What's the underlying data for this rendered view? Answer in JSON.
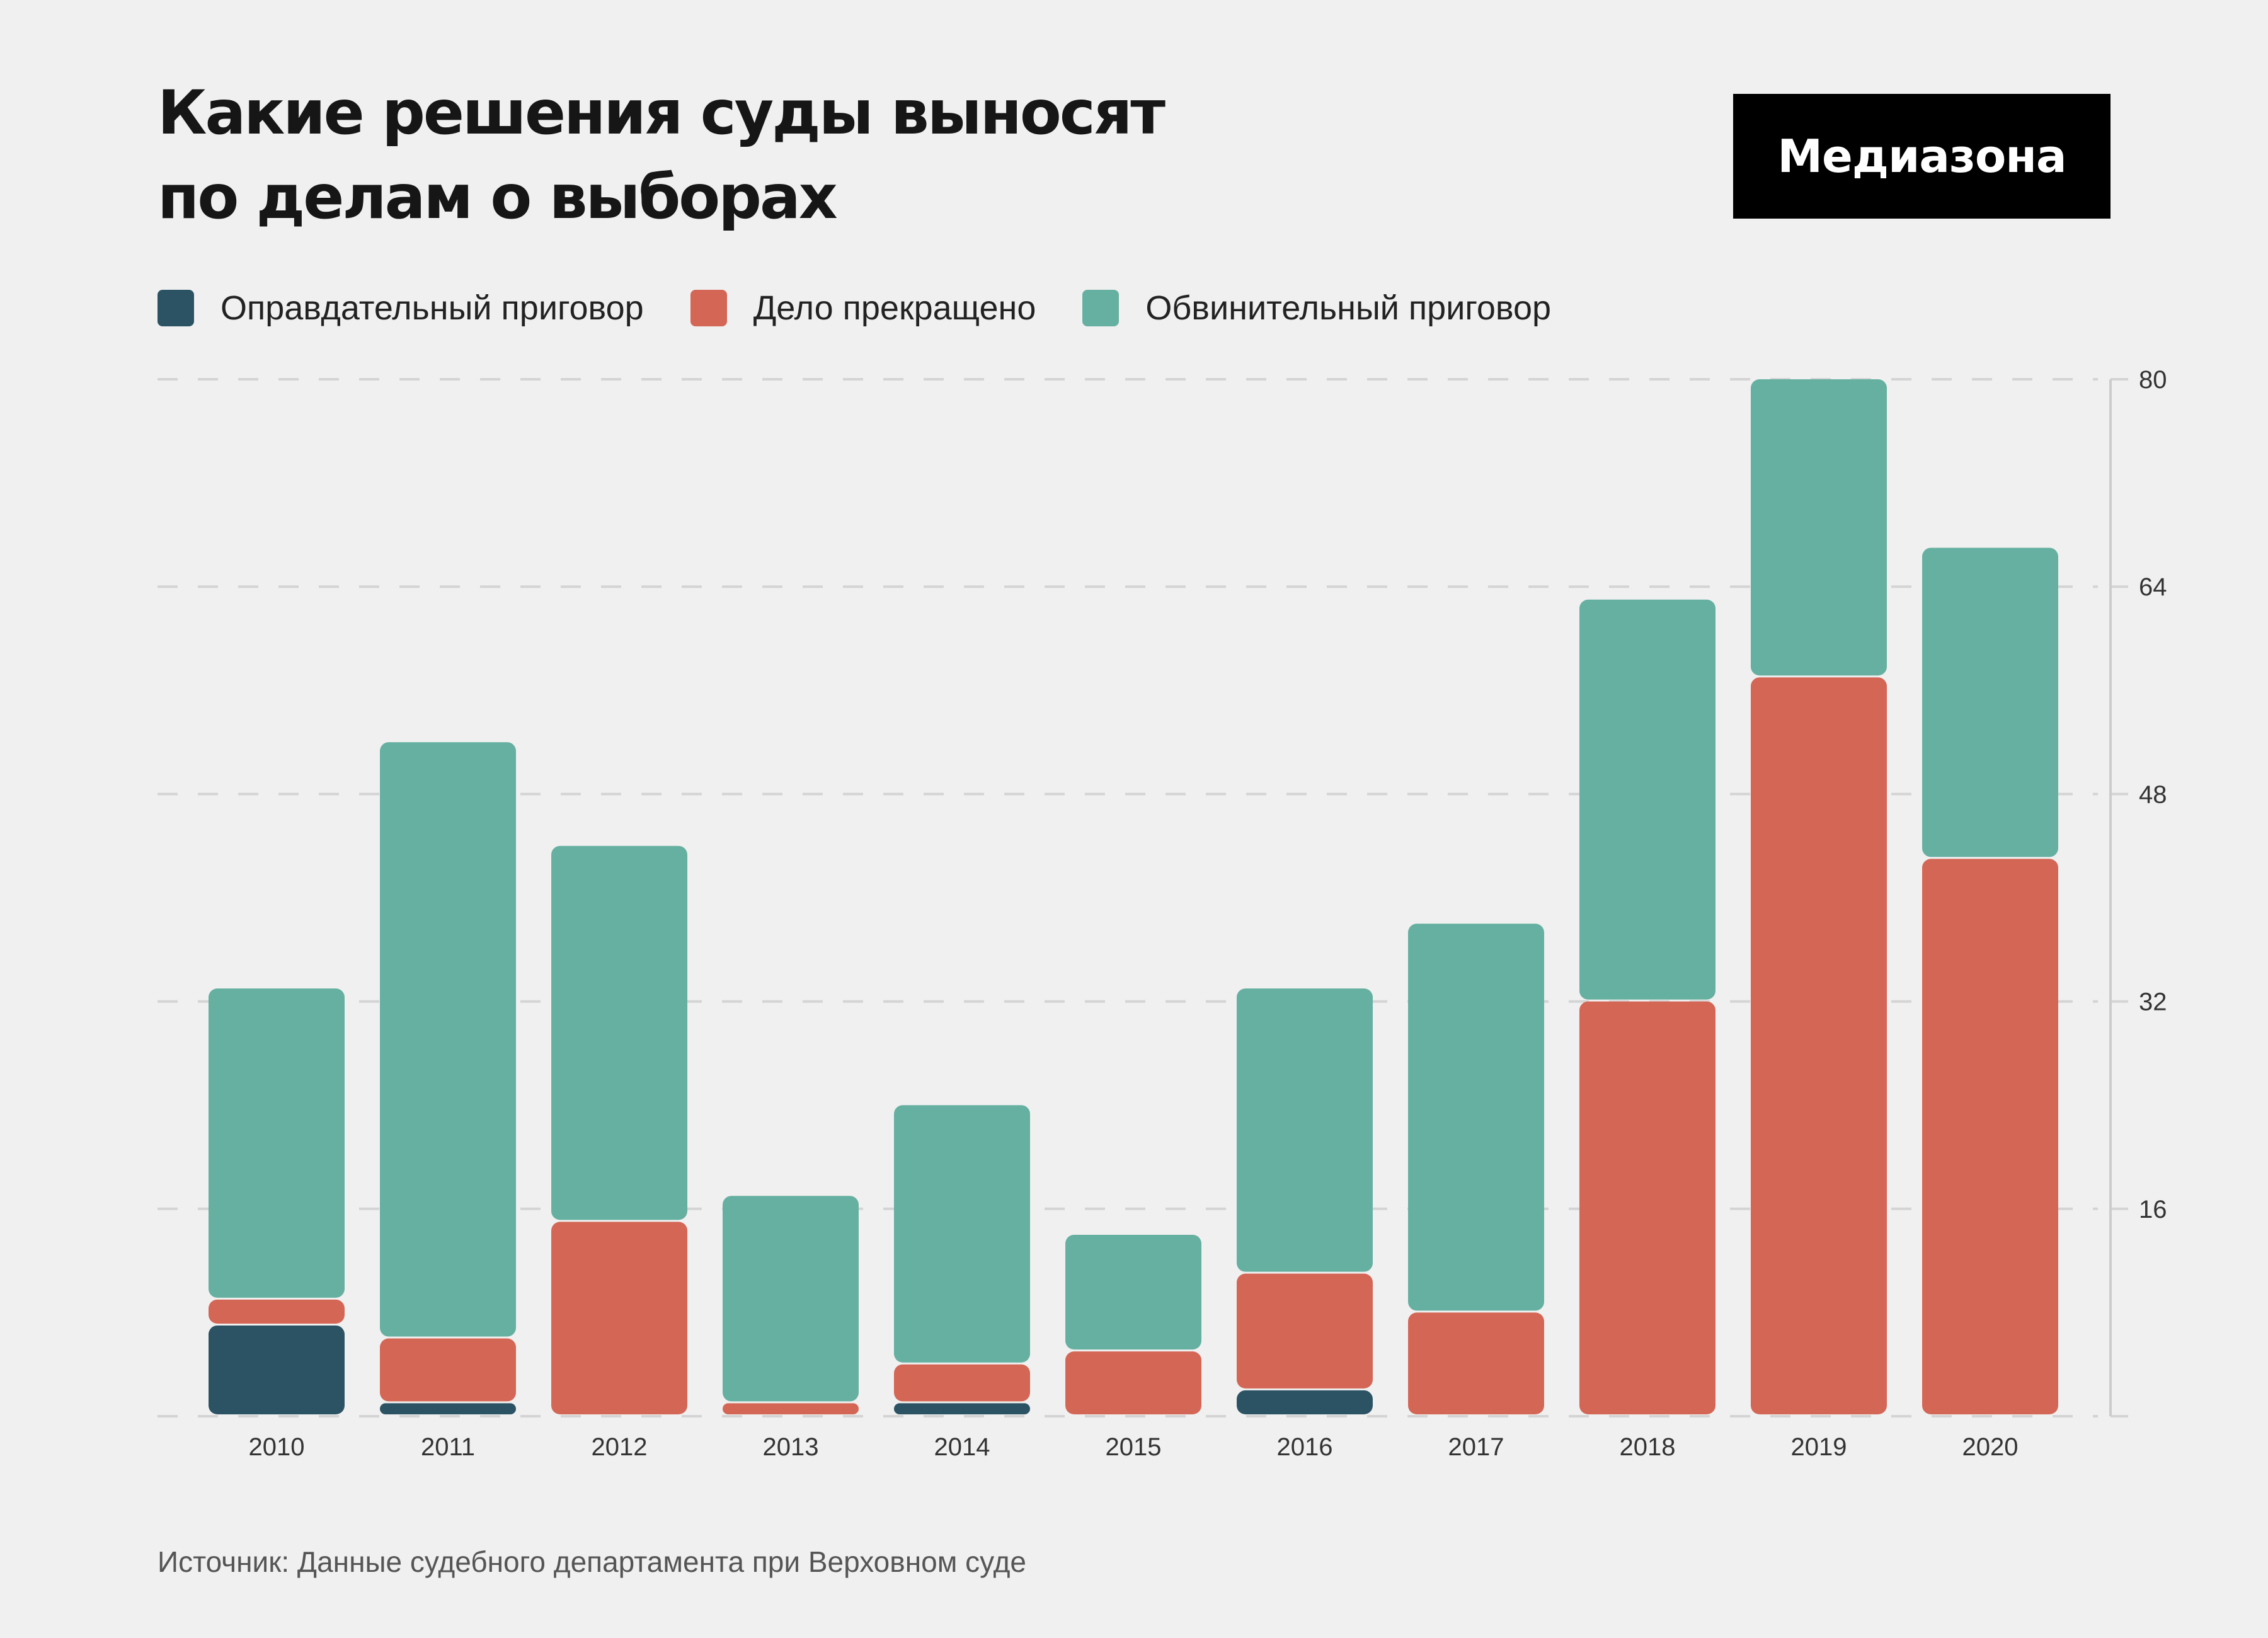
{
  "title_lines": [
    "Какие решения суды выносят",
    "по делам о выборах"
  ],
  "logo": "Медиазона",
  "source": "Источник: Данные судебного департамента при Верховном суде",
  "colors": {
    "background": "#f0f0f0",
    "acquittal": "#2c5364",
    "terminated": "#d46655",
    "conviction": "#66b0a1",
    "grid": "#d4d4d4",
    "axis": "#cccccc"
  },
  "chart_data": {
    "type": "bar",
    "stacked": true,
    "title": "Какие решения суды выносят по делам о выборах",
    "xlabel": "",
    "ylabel": "",
    "categories": [
      "2010",
      "2011",
      "2012",
      "2013",
      "2014",
      "2015",
      "2016",
      "2017",
      "2018",
      "2019",
      "2020"
    ],
    "series": [
      {
        "name": "Оправдательный приговор",
        "color": "#2c5364",
        "values": [
          7,
          1,
          0,
          0,
          1,
          0,
          2,
          0,
          0,
          0,
          0
        ]
      },
      {
        "name": "Дело прекращено",
        "color": "#d46655",
        "values": [
          2,
          5,
          15,
          1,
          3,
          5,
          9,
          8,
          32,
          57,
          43
        ]
      },
      {
        "name": "Обвинительный приговор",
        "color": "#66b0a1",
        "values": [
          24,
          46,
          29,
          16,
          20,
          9,
          22,
          30,
          31,
          23,
          24
        ]
      }
    ],
    "ylim": [
      0,
      80
    ],
    "yticks": [
      16,
      32,
      48,
      64,
      80
    ],
    "y_axis_side": "right",
    "grid": true,
    "legend_position": "top-left"
  }
}
